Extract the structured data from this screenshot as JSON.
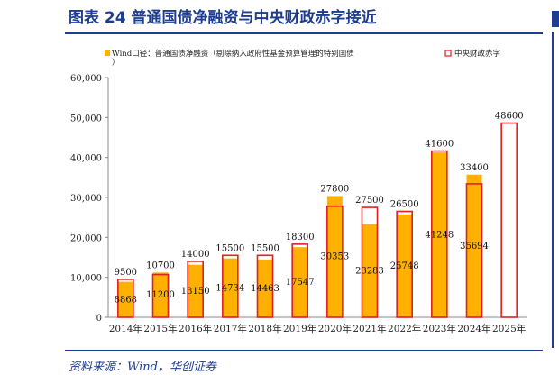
{
  "figure": {
    "title": "图表 24   普通国债净融资与中央财政赤字接近",
    "source": "资料来源：Wind，华创证券"
  },
  "chart_data": {
    "type": "bar",
    "categories": [
      "2014年",
      "2015年",
      "2016年",
      "2017年",
      "2018年",
      "2019年",
      "2020年",
      "2021年",
      "2022年",
      "2023年",
      "2024年",
      "2025年"
    ],
    "series": [
      {
        "name": "Wind口径：普通国债净融资（剔除纳入政府性基金预算管理的特别国债）",
        "values": [
          8868,
          11200,
          13150,
          14734,
          14463,
          17547,
          30353,
          23283,
          25748,
          41248,
          35694,
          null
        ],
        "color": "#FFB000"
      },
      {
        "name": "中央财政赤字",
        "values": [
          9500,
          10700,
          14000,
          15500,
          15500,
          18300,
          27800,
          27500,
          26500,
          41600,
          33400,
          48600
        ],
        "color": "#E0201E"
      }
    ],
    "y_ticks": [
      "0",
      "10,000",
      "20,000",
      "30,000",
      "40,000",
      "50,000",
      "60,000"
    ],
    "ylim": [
      0,
      60000
    ],
    "legend_position": "top",
    "grid": false
  }
}
